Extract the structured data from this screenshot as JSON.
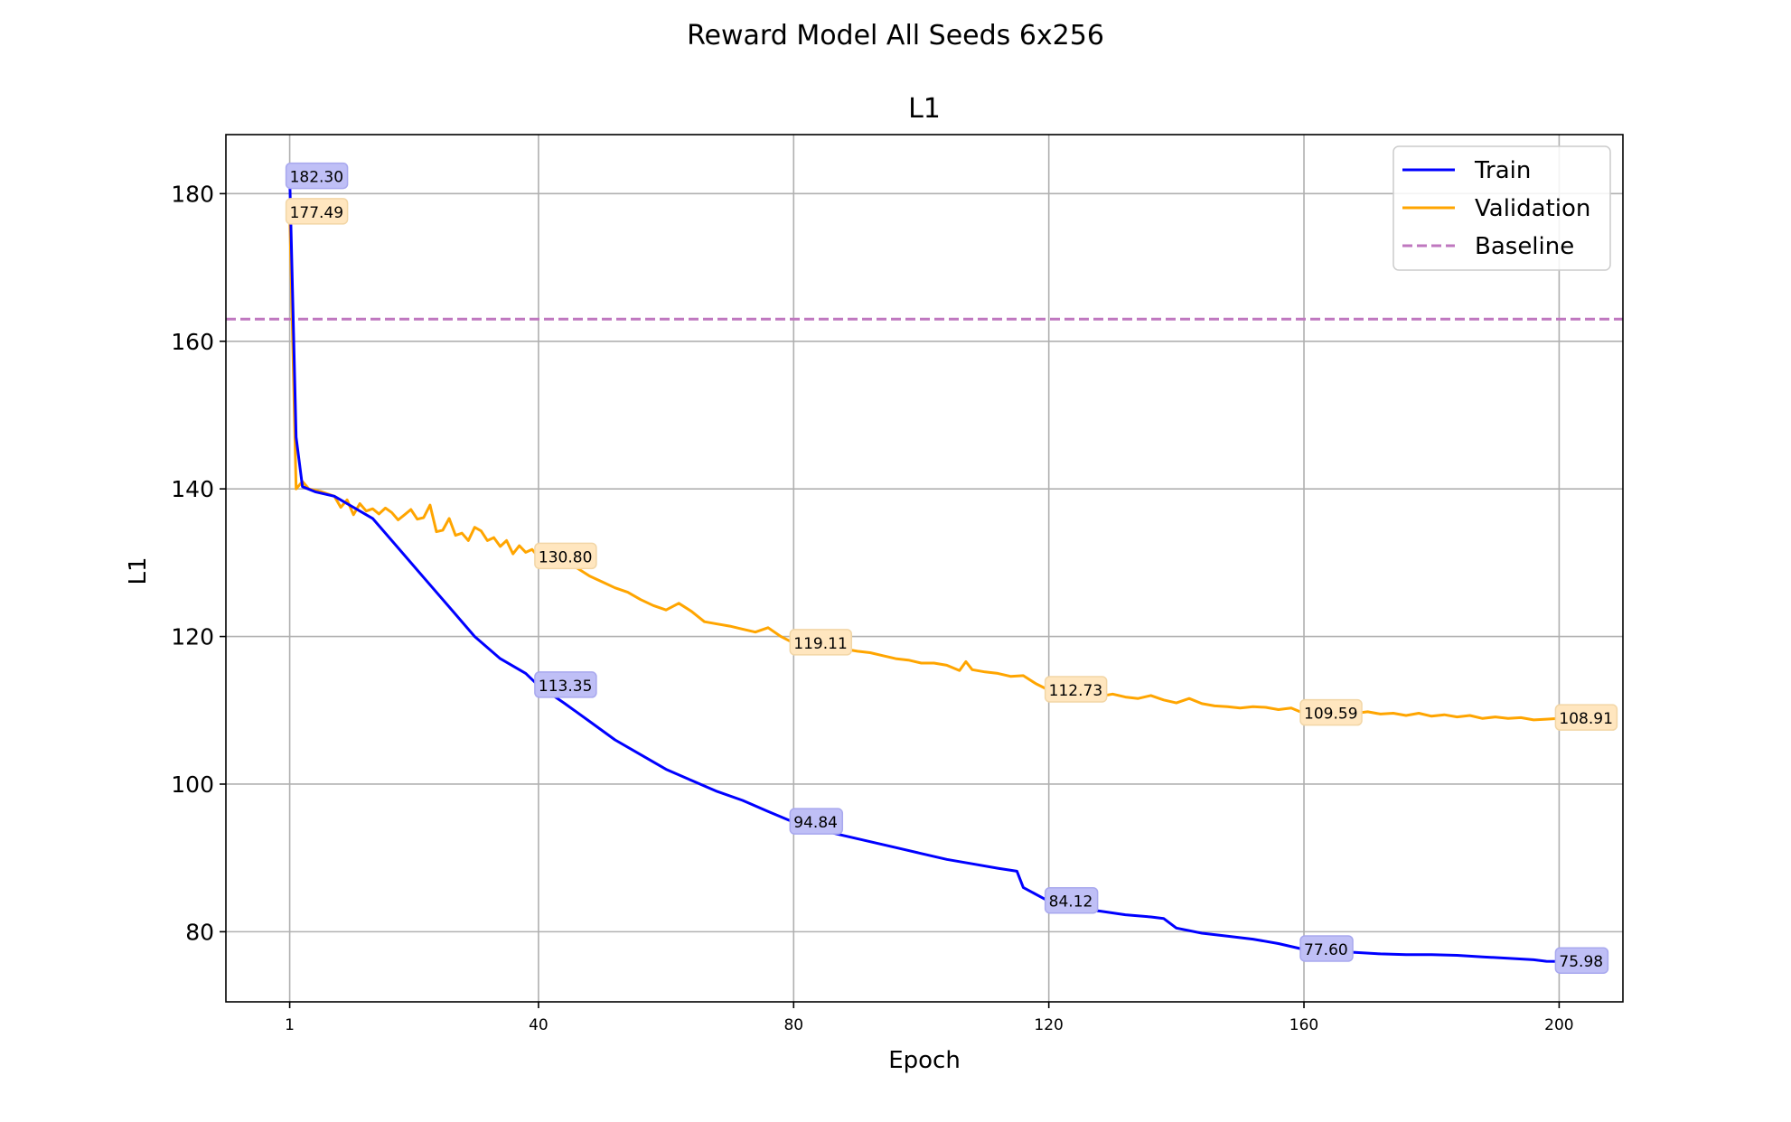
{
  "figure": {
    "suptitle": "Reward Model All Seeds 6x256"
  },
  "chart_data": {
    "type": "line",
    "title": "L1",
    "xlabel": "Epoch",
    "ylabel": "L1",
    "xlim": [
      -9,
      210
    ],
    "ylim": [
      70.5,
      188
    ],
    "x_ticks": [
      1,
      40,
      80,
      120,
      160,
      200
    ],
    "y_ticks": [
      80,
      100,
      120,
      140,
      160,
      180
    ],
    "grid": true,
    "legend_position": "top-right",
    "baseline": {
      "name": "Baseline",
      "value": 163,
      "color": "#bf77bf",
      "style": "dashed"
    },
    "series": [
      {
        "name": "Train",
        "color": "#0000ff",
        "points": [
          [
            1,
            182.3
          ],
          [
            2,
            147
          ],
          [
            3,
            140.3
          ],
          [
            5,
            139.6
          ],
          [
            8,
            139
          ],
          [
            10,
            138
          ],
          [
            14,
            136
          ],
          [
            18,
            132
          ],
          [
            22,
            128
          ],
          [
            26,
            124
          ],
          [
            30,
            120
          ],
          [
            34,
            117
          ],
          [
            38,
            115
          ],
          [
            40,
            113.35
          ],
          [
            44,
            111
          ],
          [
            48,
            108.5
          ],
          [
            52,
            106
          ],
          [
            56,
            104
          ],
          [
            60,
            102
          ],
          [
            64,
            100.5
          ],
          [
            68,
            99
          ],
          [
            72,
            97.8
          ],
          [
            76,
            96.3
          ],
          [
            80,
            94.84
          ],
          [
            84,
            93.8
          ],
          [
            88,
            93
          ],
          [
            92,
            92.2
          ],
          [
            96,
            91.4
          ],
          [
            100,
            90.6
          ],
          [
            104,
            89.8
          ],
          [
            108,
            89.2
          ],
          [
            112,
            88.6
          ],
          [
            115,
            88.2
          ],
          [
            116,
            86
          ],
          [
            120,
            84.12
          ],
          [
            124,
            83.2
          ],
          [
            128,
            82.8
          ],
          [
            132,
            82.3
          ],
          [
            136,
            82
          ],
          [
            138,
            81.8
          ],
          [
            140,
            80.5
          ],
          [
            144,
            79.8
          ],
          [
            148,
            79.4
          ],
          [
            152,
            79
          ],
          [
            156,
            78.4
          ],
          [
            160,
            77.6
          ],
          [
            164,
            77.3
          ],
          [
            168,
            77.2
          ],
          [
            172,
            77
          ],
          [
            176,
            76.9
          ],
          [
            180,
            76.9
          ],
          [
            184,
            76.8
          ],
          [
            188,
            76.6
          ],
          [
            192,
            76.4
          ],
          [
            196,
            76.2
          ],
          [
            198,
            76
          ],
          [
            200,
            75.98
          ]
        ]
      },
      {
        "name": "Validation",
        "color": "#ffa500",
        "points": [
          [
            1,
            177.49
          ],
          [
            2,
            140
          ],
          [
            3,
            141
          ],
          [
            4,
            140
          ],
          [
            6,
            139.6
          ],
          [
            8,
            139
          ],
          [
            9,
            137.5
          ],
          [
            10,
            138.5
          ],
          [
            11,
            136.5
          ],
          [
            12,
            138
          ],
          [
            13,
            137
          ],
          [
            14,
            137.3
          ],
          [
            15,
            136.6
          ],
          [
            16,
            137.4
          ],
          [
            17,
            136.8
          ],
          [
            18,
            135.8
          ],
          [
            19,
            136.5
          ],
          [
            20,
            137.2
          ],
          [
            21,
            135.9
          ],
          [
            22,
            136.1
          ],
          [
            23,
            137.8
          ],
          [
            24,
            134.2
          ],
          [
            25,
            134.4
          ],
          [
            26,
            136
          ],
          [
            27,
            133.7
          ],
          [
            28,
            134
          ],
          [
            29,
            133
          ],
          [
            30,
            134.8
          ],
          [
            31,
            134.3
          ],
          [
            32,
            133
          ],
          [
            33,
            133.4
          ],
          [
            34,
            132.2
          ],
          [
            35,
            133
          ],
          [
            36,
            131.2
          ],
          [
            37,
            132.3
          ],
          [
            38,
            131.4
          ],
          [
            39,
            131.8
          ],
          [
            40,
            130.8
          ],
          [
            42,
            130.2
          ],
          [
            44,
            129.6
          ],
          [
            46,
            129.3
          ],
          [
            48,
            128.2
          ],
          [
            50,
            127.4
          ],
          [
            52,
            126.6
          ],
          [
            54,
            126
          ],
          [
            56,
            125
          ],
          [
            58,
            124.2
          ],
          [
            60,
            123.6
          ],
          [
            62,
            124.5
          ],
          [
            64,
            123.4
          ],
          [
            66,
            122
          ],
          [
            68,
            121.7
          ],
          [
            70,
            121.4
          ],
          [
            72,
            121
          ],
          [
            74,
            120.6
          ],
          [
            76,
            121.2
          ],
          [
            78,
            120
          ],
          [
            80,
            119.11
          ],
          [
            82,
            118.7
          ],
          [
            84,
            118.6
          ],
          [
            86,
            118
          ],
          [
            88,
            118.3
          ],
          [
            90,
            118
          ],
          [
            92,
            117.8
          ],
          [
            94,
            117.4
          ],
          [
            96,
            117
          ],
          [
            98,
            116.8
          ],
          [
            100,
            116.4
          ],
          [
            102,
            116.4
          ],
          [
            104,
            116.1
          ],
          [
            106,
            115.4
          ],
          [
            107,
            116.6
          ],
          [
            108,
            115.5
          ],
          [
            110,
            115.2
          ],
          [
            112,
            115
          ],
          [
            114,
            114.6
          ],
          [
            116,
            114.7
          ],
          [
            118,
            113.6
          ],
          [
            120,
            112.73
          ],
          [
            122,
            112.6
          ],
          [
            124,
            112.4
          ],
          [
            126,
            112.1
          ],
          [
            128,
            111.9
          ],
          [
            130,
            112.2
          ],
          [
            132,
            111.8
          ],
          [
            134,
            111.6
          ],
          [
            136,
            112
          ],
          [
            138,
            111.4
          ],
          [
            140,
            111
          ],
          [
            142,
            111.6
          ],
          [
            144,
            110.9
          ],
          [
            146,
            110.6
          ],
          [
            148,
            110.5
          ],
          [
            150,
            110.3
          ],
          [
            152,
            110.5
          ],
          [
            154,
            110.4
          ],
          [
            156,
            110.1
          ],
          [
            158,
            110.3
          ],
          [
            160,
            109.59
          ],
          [
            162,
            109.9
          ],
          [
            164,
            109.6
          ],
          [
            166,
            109.7
          ],
          [
            168,
            109.6
          ],
          [
            170,
            109.8
          ],
          [
            172,
            109.5
          ],
          [
            174,
            109.6
          ],
          [
            176,
            109.3
          ],
          [
            178,
            109.6
          ],
          [
            180,
            109.2
          ],
          [
            182,
            109.4
          ],
          [
            184,
            109.1
          ],
          [
            186,
            109.3
          ],
          [
            188,
            108.9
          ],
          [
            190,
            109.1
          ],
          [
            192,
            108.9
          ],
          [
            194,
            109
          ],
          [
            196,
            108.7
          ],
          [
            198,
            108.8
          ],
          [
            200,
            108.91
          ]
        ]
      }
    ],
    "annotations": [
      {
        "series": "Train",
        "x": 1,
        "y": 182.3,
        "text": "182.30",
        "dy": 0
      },
      {
        "series": "Validation",
        "x": 1,
        "y": 177.49,
        "text": "177.49",
        "dy": 0
      },
      {
        "series": "Validation",
        "x": 40,
        "y": 130.8,
        "text": "130.80",
        "dy": 0
      },
      {
        "series": "Train",
        "x": 40,
        "y": 113.35,
        "text": "113.35",
        "dy": 0
      },
      {
        "series": "Validation",
        "x": 80,
        "y": 119.11,
        "text": "119.11",
        "dy": 0
      },
      {
        "series": "Train",
        "x": 80,
        "y": 94.84,
        "text": "94.84",
        "dy": 0
      },
      {
        "series": "Validation",
        "x": 120,
        "y": 112.73,
        "text": "112.73",
        "dy": 0
      },
      {
        "series": "Train",
        "x": 120,
        "y": 84.12,
        "text": "84.12",
        "dy": 0
      },
      {
        "series": "Validation",
        "x": 160,
        "y": 109.59,
        "text": "109.59",
        "dy": 0
      },
      {
        "series": "Train",
        "x": 160,
        "y": 77.6,
        "text": "77.60",
        "dy": 0
      },
      {
        "series": "Validation",
        "x": 200,
        "y": 108.91,
        "text": "108.91",
        "dy": 0
      },
      {
        "series": "Train",
        "x": 200,
        "y": 75.98,
        "text": "75.98",
        "dy": 0
      }
    ]
  }
}
